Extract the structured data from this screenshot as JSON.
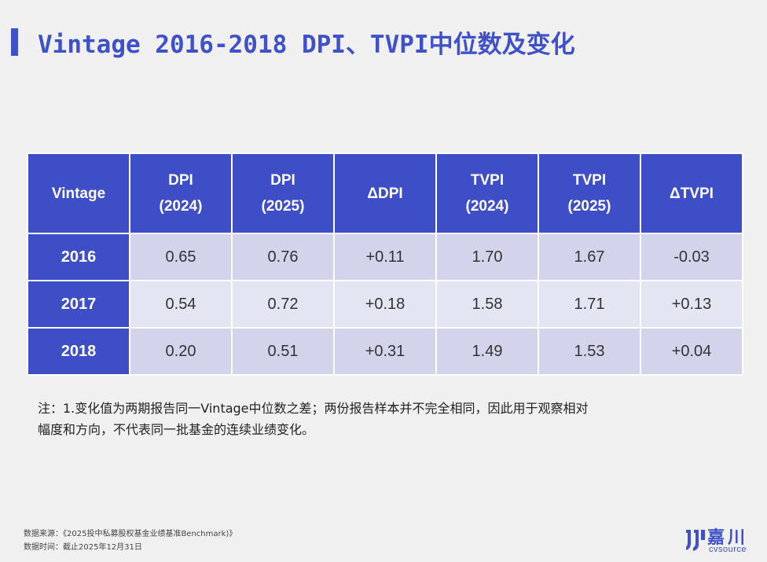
{
  "title": "Vintage 2016-2018 DPI、TVPI中位数及变化",
  "table": {
    "headers": [
      [
        "Vintage"
      ],
      [
        "DPI",
        "(2024)"
      ],
      [
        "DPI",
        "(2025)"
      ],
      [
        "ΔDPI"
      ],
      [
        "TVPI",
        "(2024)"
      ],
      [
        "TVPI",
        "(2025)"
      ],
      [
        "ΔTVPI"
      ]
    ],
    "rows": [
      [
        "2016",
        "0.65",
        "0.76",
        "+0.11",
        "1.70",
        "1.67",
        "-0.03"
      ],
      [
        "2017",
        "0.54",
        "0.72",
        "+0.18",
        "1.58",
        "1.71",
        "+0.13"
      ],
      [
        "2018",
        "0.20",
        "0.51",
        "+0.31",
        "1.49",
        "1.53",
        "+0.04"
      ]
    ]
  },
  "note": {
    "line1": "注：1.变化值为两期报告同一Vintage中位数之差；两份报告样本并不完全相同，因此用于观察相对",
    "line2": "幅度和方向，不代表同一批基金的连续业绩变化。"
  },
  "source": {
    "line1": "数据来源：《2025投中私募股权基金业绩基准Benchmark)》",
    "line2": "数据时间：截止2025年12月31日"
  },
  "logo": {
    "cn": "嘉川",
    "en": "cvsource"
  },
  "colors": {
    "accent": "#3f51c8",
    "header_bg": "#3d4ec6",
    "row_odd": "#d3d4ec",
    "row_even": "#e4e5f3",
    "background": "#f0f0f0"
  }
}
